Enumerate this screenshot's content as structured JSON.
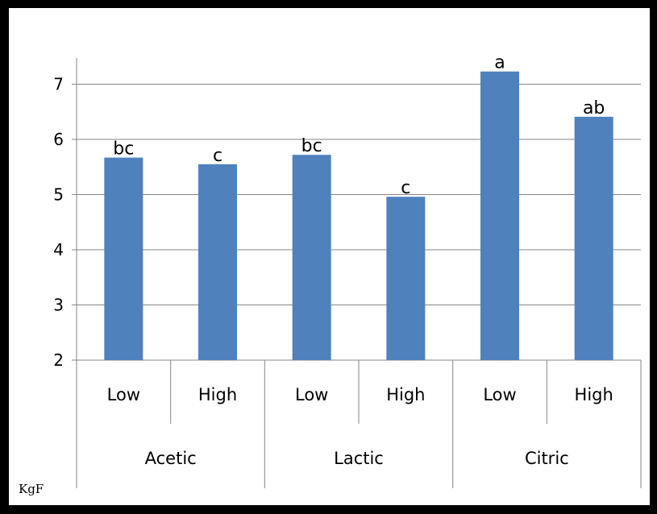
{
  "chart_data": {
    "type": "bar",
    "groups": [
      {
        "name": "Acetic",
        "categories": [
          "Low",
          "High"
        ]
      },
      {
        "name": "Lactic",
        "categories": [
          "Low",
          "High"
        ]
      },
      {
        "name": "Citric",
        "categories": [
          "Low",
          "High"
        ]
      }
    ],
    "categories": [
      "Low",
      "High",
      "Low",
      "High",
      "Low",
      "High"
    ],
    "values": [
      5.67,
      5.55,
      5.72,
      4.96,
      7.23,
      6.41
    ],
    "data_labels": [
      "bc",
      "c",
      "bc",
      "c",
      "a",
      "ab"
    ],
    "ylim": [
      2,
      7.5
    ],
    "yticks": [
      2,
      3,
      4,
      5,
      6,
      7
    ],
    "ylabel": "KgF",
    "grid": true,
    "bar_color": "#4F81BD",
    "grid_color": "#868686",
    "legend": "none"
  }
}
